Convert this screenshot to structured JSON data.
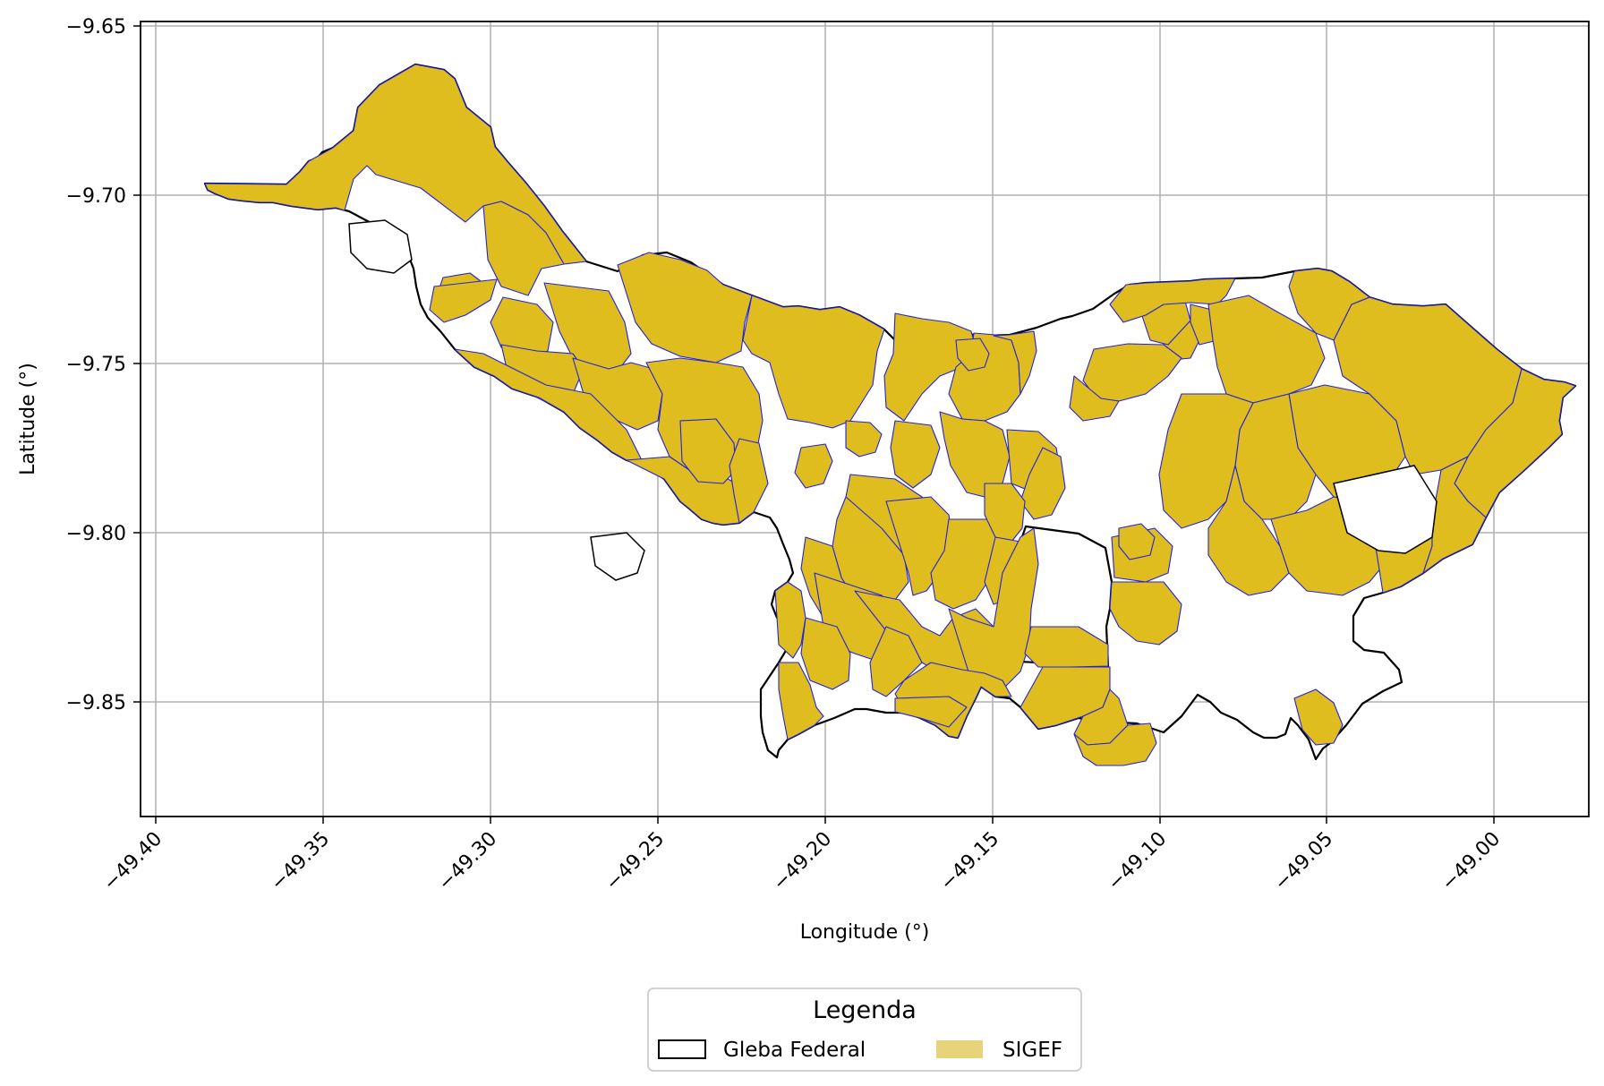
{
  "map": {
    "x_axis_label": "Longitude (°)",
    "y_axis_label": "Latitude (°)",
    "x_ticks": [
      "−49.40",
      "−49.35",
      "−49.30",
      "−49.25",
      "−49.20",
      "−49.15",
      "−49.10",
      "−49.05",
      "−49.00"
    ],
    "y_ticks": [
      "−9.65",
      "−9.70",
      "−9.75",
      "−9.80",
      "−9.85"
    ],
    "grid": true,
    "legend": {
      "title": "Legenda",
      "placement": "bottom-center, outside plot",
      "items": [
        {
          "label": "Gleba Federal",
          "style": "outline",
          "color": "#000000"
        },
        {
          "label": "SIGEF",
          "style": "fill",
          "color": "#e6d37a"
        }
      ]
    },
    "colors": {
      "parcel_fill": "#dfbd1f",
      "parcel_edge": "#1a1aff",
      "boundary": "#000000",
      "grid": "#b0b0b0"
    }
  }
}
